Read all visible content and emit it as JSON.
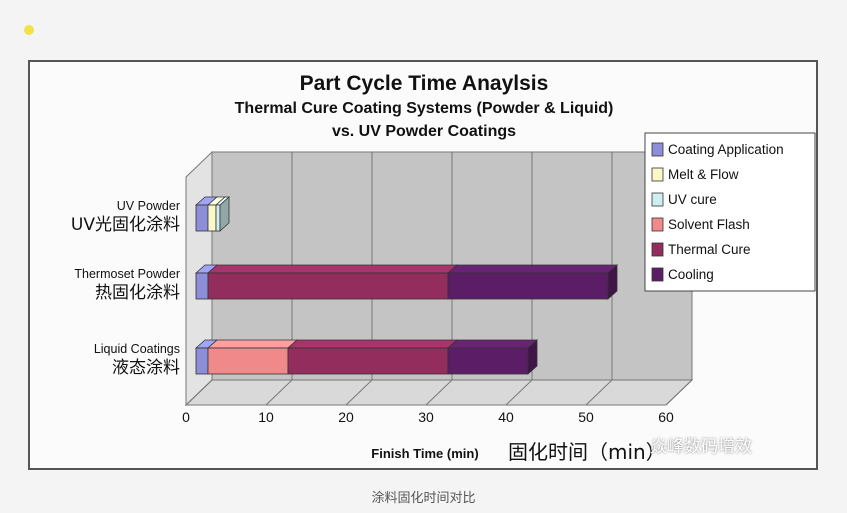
{
  "caption": "涂料固化时间对比",
  "watermark": "焱峰数码增效",
  "chart_data": {
    "type": "bar",
    "orientation": "horizontal",
    "stacked": true,
    "title": "Part Cycle Time Anaylsis",
    "subtitle_lines": [
      "Thermal Cure Coating Systems (Powder & Liquid)",
      "vs. UV Powder Coatings"
    ],
    "xlabel": "Finish Time (min)",
    "xlabel_cn": "固化时间（min）",
    "xlim": [
      0,
      60
    ],
    "xticks": [
      "0",
      "10",
      "20",
      "30",
      "40",
      "50",
      "60"
    ],
    "categories": [
      {
        "en": "UV Powder",
        "cn": "UV光固化涂料"
      },
      {
        "en": "Thermoset Powder",
        "cn": "热固化涂料"
      },
      {
        "en": "Liquid Coatings",
        "cn": "液态涂料"
      }
    ],
    "series": [
      {
        "name": "Coating Application",
        "color": "#8c8fd8",
        "values": [
          1.5,
          1.5,
          1.5
        ]
      },
      {
        "name": "Melt & Flow",
        "color": "#fbf7c8",
        "values": [
          1,
          0,
          0
        ]
      },
      {
        "name": "UV cure",
        "color": "#cfeef0",
        "values": [
          0.5,
          0,
          0
        ]
      },
      {
        "name": "Solvent Flash",
        "color": "#f08a8a",
        "values": [
          0,
          0,
          10
        ]
      },
      {
        "name": "Thermal Cure",
        "color": "#922d5e",
        "values": [
          0,
          30,
          20
        ]
      },
      {
        "name": "Cooling",
        "color": "#5b1e66",
        "values": [
          0,
          20,
          10
        ]
      }
    ],
    "legend_position": "top-right",
    "grid": true
  }
}
